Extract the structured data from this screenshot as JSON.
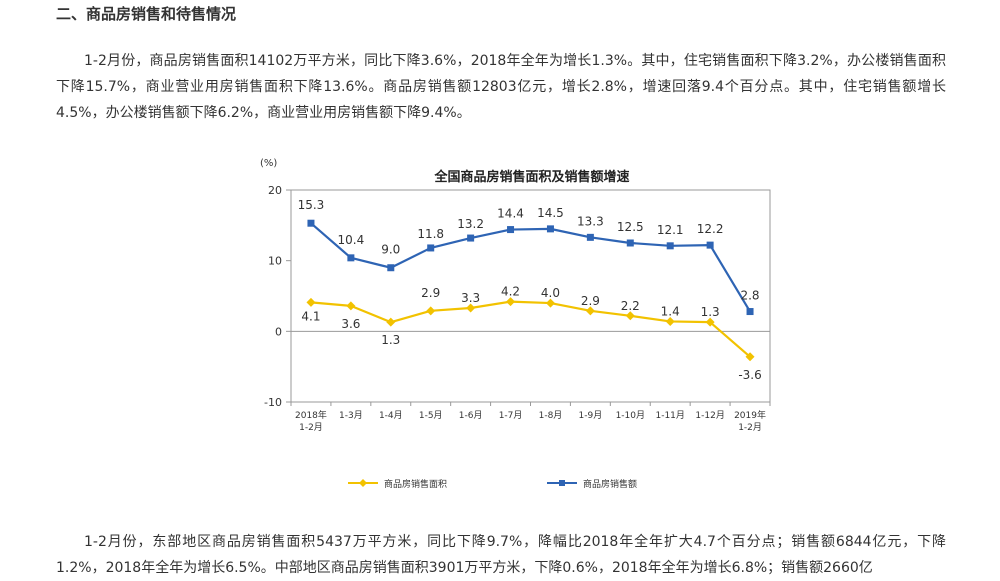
{
  "section": {
    "title": "二、商品房销售和待售情况"
  },
  "paragraphs": {
    "p1": "1-2月份，商品房销售面积14102万平方米，同比下降3.6%，2018年全年为增长1.3%。其中，住宅销售面积下降3.2%，办公楼销售面积下降15.7%，商业营业用房销售面积下降13.6%。商品房销售额12803亿元，增长2.8%，增速回落9.4个百分点。其中，住宅销售额增长4.5%，办公楼销售额下降6.2%，商业营业用房销售额下降9.4%。",
    "p2": "1-2月份，东部地区商品房销售面积5437万平方米，同比下降9.7%，降幅比2018年全年扩大4.7个百分点；销售额6844亿元，下降1.2%，2018年全年为增长6.5%。中部地区商品房销售面积3901万平方米，下降0.6%，2018年全年为增长6.8%；销售额2660亿"
  },
  "chart_data": {
    "type": "line",
    "title": "全国商品房销售面积及销售额增速",
    "ylabel": "(%)",
    "xlabel": "",
    "ylim": [
      -10,
      20
    ],
    "yticks": [
      20,
      10,
      0,
      -10
    ],
    "grid": false,
    "legend_position": "bottom",
    "categories": [
      [
        "2018年",
        "1-2月"
      ],
      [
        "1-3月"
      ],
      [
        "1-4月"
      ],
      [
        "1-5月"
      ],
      [
        "1-6月"
      ],
      [
        "1-7月"
      ],
      [
        "1-8月"
      ],
      [
        "1-9月"
      ],
      [
        "1-10月"
      ],
      [
        "1-11月"
      ],
      [
        "1-12月"
      ],
      [
        "2019年",
        "1-2月"
      ]
    ],
    "series": [
      {
        "name": "商品房销售面积",
        "color": "#f2c200",
        "marker": "diamond",
        "values": [
          4.1,
          3.6,
          1.3,
          2.9,
          3.3,
          4.2,
          4.0,
          2.9,
          2.2,
          1.4,
          1.3,
          -3.6
        ],
        "labels": [
          "4.1",
          "3.6",
          "1.3",
          "2.9",
          "3.3",
          "4.2",
          "4.0",
          "2.9",
          "2.2",
          "1.4",
          "1.3",
          "-3.6"
        ]
      },
      {
        "name": "商品房销售额",
        "color": "#2e64b4",
        "marker": "square",
        "values": [
          15.3,
          10.4,
          9.0,
          11.8,
          13.2,
          14.4,
          14.5,
          13.3,
          12.5,
          12.1,
          12.2,
          2.8
        ],
        "labels": [
          "15.3",
          "10.4",
          "9.0",
          "11.8",
          "13.2",
          "14.4",
          "14.5",
          "13.3",
          "12.5",
          "12.1",
          "12.2",
          "2.8"
        ]
      }
    ]
  }
}
